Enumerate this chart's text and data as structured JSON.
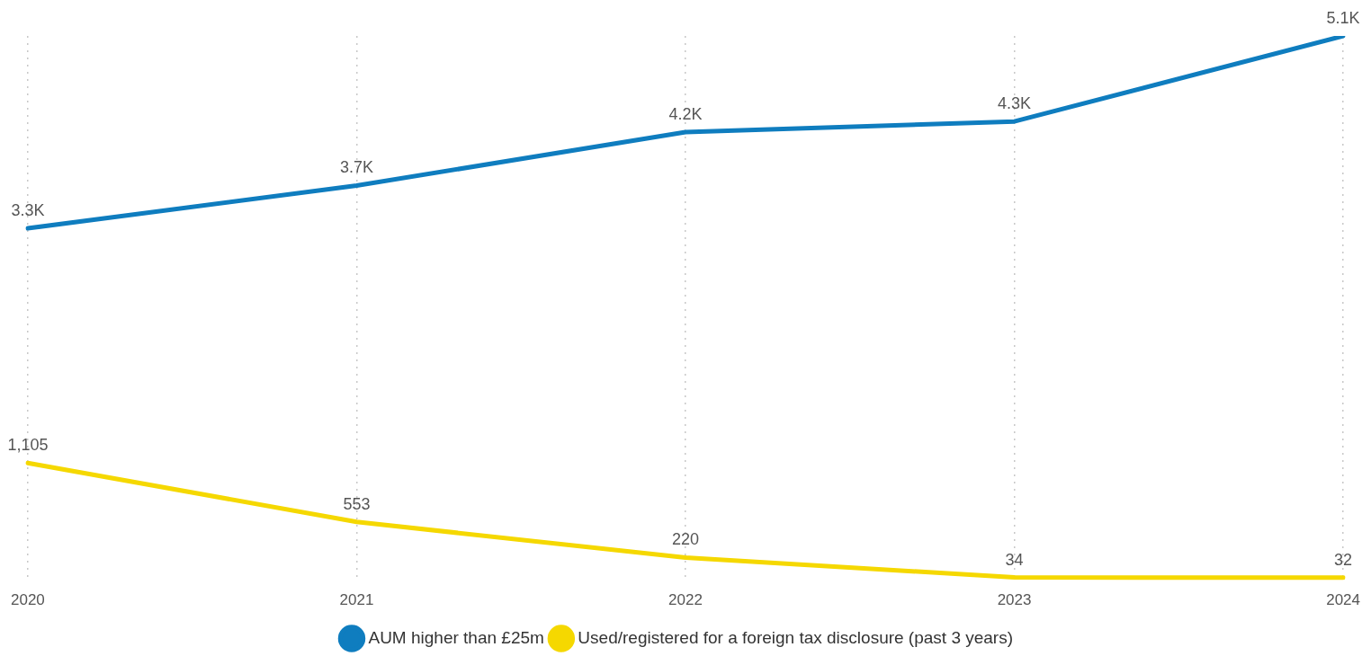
{
  "chart_data": {
    "type": "line",
    "categories": [
      "2020",
      "2021",
      "2022",
      "2023",
      "2024"
    ],
    "series": [
      {
        "name": "AUM higher than £25m",
        "color": "#0f7dbf",
        "values": [
          3300,
          3700,
          4200,
          4300,
          5100
        ],
        "value_labels": [
          "3.3K",
          "3.7K",
          "4.2K",
          "4.3K",
          "5.1K"
        ]
      },
      {
        "name": "Used/registered for a foreign tax disclosure (past 3 years)",
        "color": "#f5d800",
        "values": [
          1105,
          553,
          220,
          34,
          32
        ],
        "value_labels": [
          "1,105",
          "553",
          "220",
          "34",
          "32"
        ]
      }
    ],
    "ylim": [
      0,
      5100
    ],
    "tick_labels": "x",
    "grid": "x",
    "legend": "bottom",
    "marker": "none",
    "line_style": "solid"
  }
}
